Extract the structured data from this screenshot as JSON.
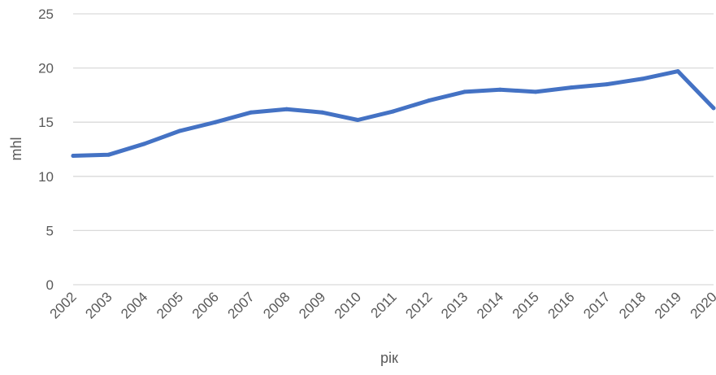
{
  "chart_data": {
    "type": "line",
    "title": "",
    "xlabel": "рік",
    "ylabel": "mhl",
    "ylim": [
      0,
      25
    ],
    "yticks": [
      0,
      5,
      10,
      15,
      20,
      25
    ],
    "grid": true,
    "legend": "none",
    "categories": [
      "2002",
      "2003",
      "2004",
      "2005",
      "2006",
      "2007",
      "2008",
      "2009",
      "2010",
      "2011",
      "2012",
      "2013",
      "2014",
      "2015",
      "2016",
      "2017",
      "2018",
      "2019",
      "2020"
    ],
    "series": [
      {
        "color": "#4472c4",
        "values": [
          11.9,
          12.0,
          13.0,
          14.2,
          15.0,
          15.9,
          16.2,
          15.9,
          15.2,
          16.0,
          17.0,
          17.8,
          18.0,
          17.8,
          18.2,
          18.5,
          19.0,
          19.7,
          16.3
        ]
      }
    ]
  }
}
